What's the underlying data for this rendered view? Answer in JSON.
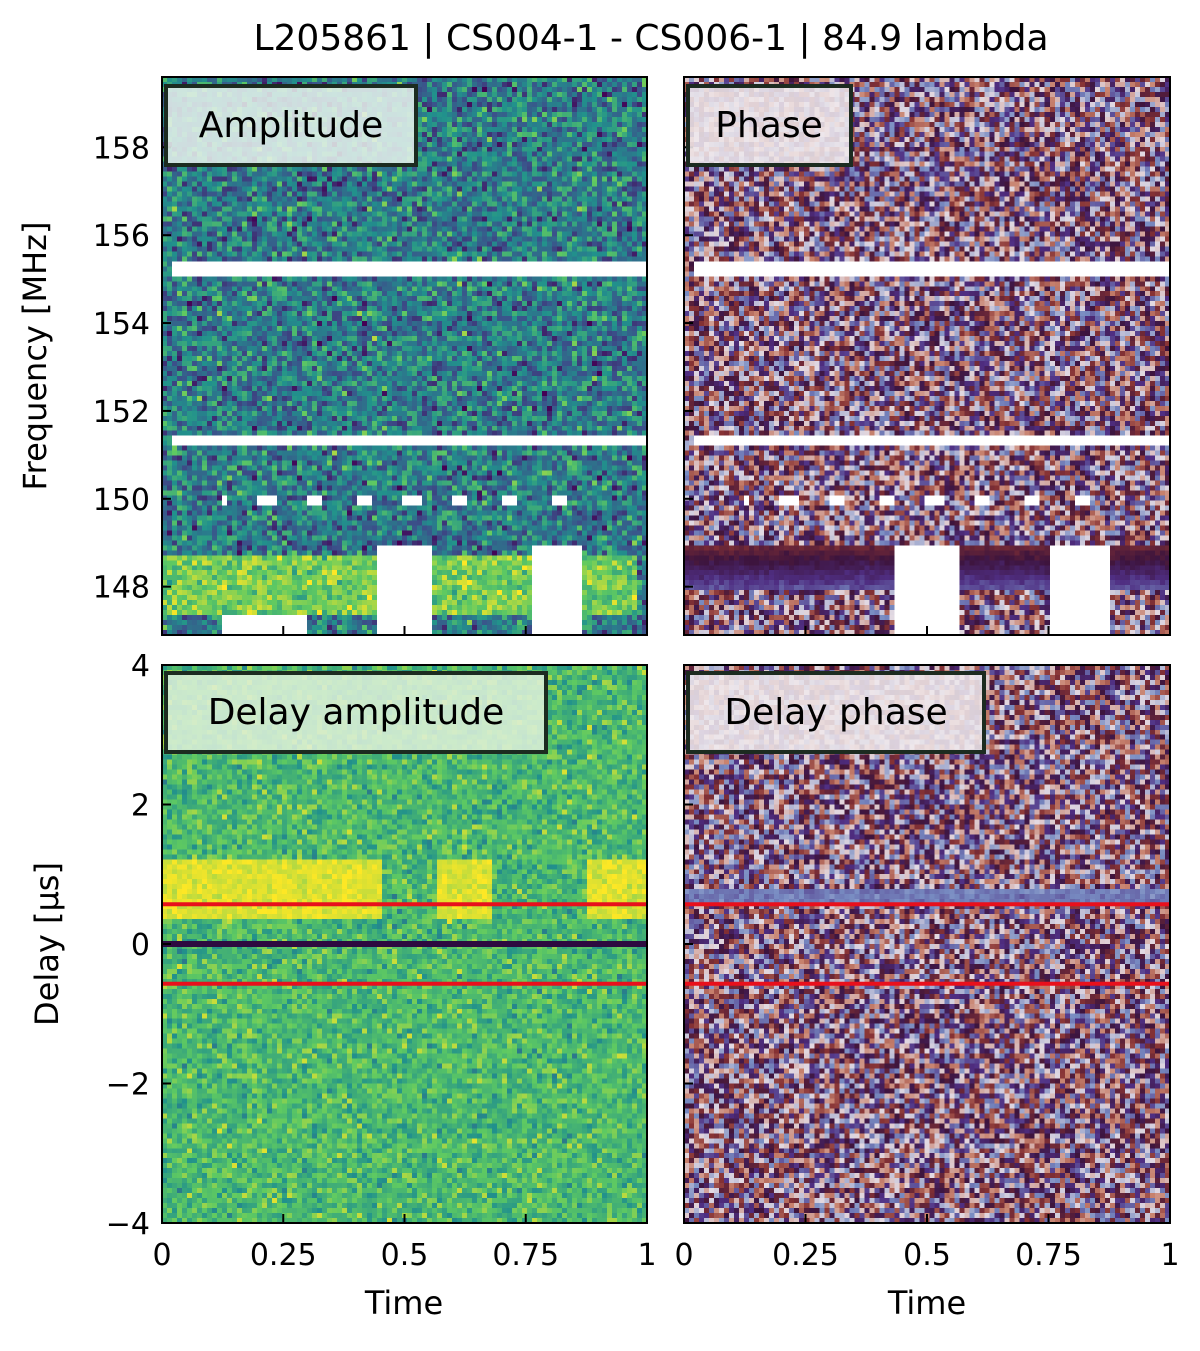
{
  "figure": {
    "title": "L205861 | CS004-1 - CS006-1 | 84.9 lambda"
  },
  "colors": {
    "flag_red": "#e8101c",
    "zero_line": "#2d0a40",
    "flagged": "#ffffff",
    "frame": "#000000"
  },
  "chart_data": [
    {
      "id": "amplitude",
      "type": "heatmap",
      "title": "Amplitude",
      "xlabel": "",
      "ylabel": "Frequency [MHz]",
      "xlim": [
        0,
        1
      ],
      "ylim": [
        146.9,
        159.6
      ],
      "xticks": [
        0,
        0.25,
        0.5,
        0.75,
        1
      ],
      "xtick_labels": [],
      "yticks": [
        148,
        150,
        152,
        154,
        156,
        158
      ],
      "ytick_labels": [
        "148",
        "150",
        "152",
        "154",
        "156",
        "158"
      ],
      "colormap": "viridis",
      "flagged_bands_mhz": [
        [
          155.1,
          155.35
        ],
        [
          151.25,
          151.4
        ]
      ],
      "flagged_dashes_mhz": 149.95,
      "flagged_blobs": [
        {
          "x": [
            0.44,
            0.56
          ],
          "y": [
            146.9,
            148.9
          ]
        },
        {
          "x": [
            0.76,
            0.87
          ],
          "y": [
            146.9,
            148.9
          ]
        }
      ],
      "strong_band_mhz": [
        147.3,
        148.7
      ]
    },
    {
      "id": "phase",
      "type": "heatmap",
      "title": "Phase",
      "xlabel": "",
      "ylabel": "",
      "xlim": [
        0,
        1
      ],
      "ylim": [
        146.9,
        159.6
      ],
      "xticks": [
        0,
        0.25,
        0.5,
        0.75,
        1
      ],
      "xtick_labels": [],
      "yticks": [
        148,
        150,
        152,
        154,
        156,
        158
      ],
      "ytick_labels": [],
      "colormap": "twilight"
    },
    {
      "id": "delay_amplitude",
      "type": "heatmap",
      "title": "Delay amplitude",
      "xlabel": "Time",
      "ylabel": "Delay [µs]",
      "xlim": [
        0,
        1
      ],
      "ylim": [
        -4,
        4
      ],
      "xticks": [
        0,
        0.25,
        0.5,
        0.75,
        1
      ],
      "xtick_labels": [
        "0",
        "0.25",
        "0.5",
        "0.75",
        "1"
      ],
      "yticks": [
        -4,
        -2,
        0,
        2,
        4
      ],
      "ytick_labels": [
        "−4",
        "−2",
        "0",
        "2",
        "4"
      ],
      "colormap": "viridis",
      "hlines": [
        {
          "y": 0.57,
          "color": "red"
        },
        {
          "y": 0,
          "color": "dark"
        },
        {
          "y": -0.57,
          "color": "red"
        }
      ]
    },
    {
      "id": "delay_phase",
      "type": "heatmap",
      "title": "Delay phase",
      "xlabel": "Time",
      "ylabel": "",
      "xlim": [
        0,
        1
      ],
      "ylim": [
        -4,
        4
      ],
      "xticks": [
        0,
        0.25,
        0.5,
        0.75,
        1
      ],
      "xtick_labels": [
        "0",
        "0.25",
        "0.5",
        "0.75",
        "1"
      ],
      "yticks": [
        -4,
        -2,
        0,
        2,
        4
      ],
      "ytick_labels": [],
      "colormap": "twilight",
      "hlines": [
        {
          "y": 0.57,
          "color": "red"
        },
        {
          "y": -0.57,
          "color": "red"
        }
      ]
    }
  ]
}
